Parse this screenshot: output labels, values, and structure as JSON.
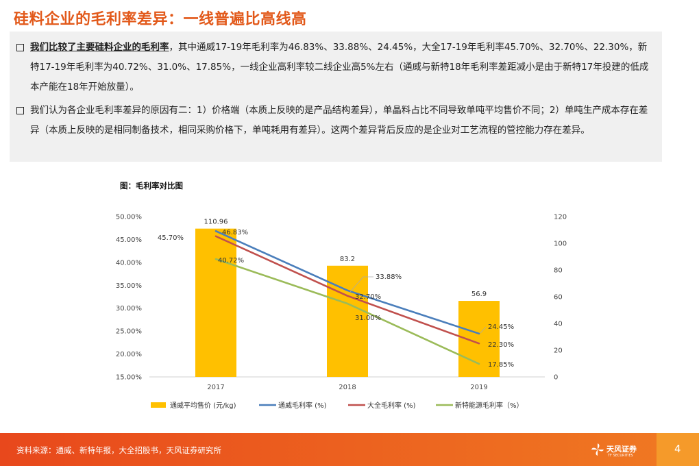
{
  "header": {
    "title": "硅料企业的毛利率差异：一线普遍比高线高"
  },
  "bullets": [
    {
      "lead": "我们比较了主要硅料企业的毛利率",
      "text": "，其中通威17-19年毛利率为46.83%、33.88%、24.45%，大全17-19年毛利率45.70%、32.70%、22.30%，新特17-19年毛利率为40.72%、31.0%、17.85%，一线企业高利率较二线企业高5%左右（通威与新特18年毛利率差距减小是由于新特17年投建的低成本产能在18年开始放量）。"
    },
    {
      "lead": "",
      "text": "我们认为各企业毛利率差异的原因有二：1）价格端（本质上反映的是产品结构差异），单晶料占比不同导致单吨平均售价不同；2）单吨生产成本存在差异（本质上反映的是相同制备技术，相同采购价格下，单吨耗用有差异）。这两个差异背后反应的是企业对工艺流程的管控能力存在差异。"
    }
  ],
  "figure": {
    "caption": "图：毛利率对比图"
  },
  "chart_data": {
    "type": "bar",
    "categories": [
      "2017",
      "2018",
      "2019"
    ],
    "bar_series": {
      "name": "通威平均售价 (元/kg)",
      "values": [
        110.96,
        83.2,
        56.9
      ],
      "color": "#ffc000",
      "axis": "right"
    },
    "line_series": [
      {
        "name": "通威毛利率 (%)",
        "values": [
          46.83,
          33.88,
          24.45
        ],
        "labels": [
          "46.83%",
          "33.88%",
          "24.45%"
        ],
        "color": "#4a7ebb"
      },
      {
        "name": "大全毛利率 (%)",
        "values": [
          45.7,
          32.7,
          22.3
        ],
        "labels": [
          "45.70%",
          "32.70%",
          "22.30%"
        ],
        "color": "#c0504d"
      },
      {
        "name": "新特能源毛利率（%）",
        "values": [
          40.72,
          31.0,
          17.85
        ],
        "labels": [
          "40.72%",
          "31.00%",
          "17.85%"
        ],
        "color": "#9bbb59"
      }
    ],
    "y_left": {
      "min": 15,
      "max": 50,
      "step": 5,
      "tick_labels": [
        "15.00%",
        "20.00%",
        "25.00%",
        "30.00%",
        "35.00%",
        "40.00%",
        "45.00%",
        "50.00%"
      ]
    },
    "y_right": {
      "min": 0,
      "max": 120,
      "step": 20,
      "tick_labels": [
        "0",
        "20",
        "40",
        "60",
        "80",
        "100",
        "120"
      ]
    },
    "grid": false,
    "legend_position": "bottom"
  },
  "footer": {
    "source": "资料来源：通威、新特年报，大全招股书，天风证券研究所",
    "logo_text": "天风证券",
    "logo_sub": "TF SECURITIES",
    "page_number": "4"
  }
}
